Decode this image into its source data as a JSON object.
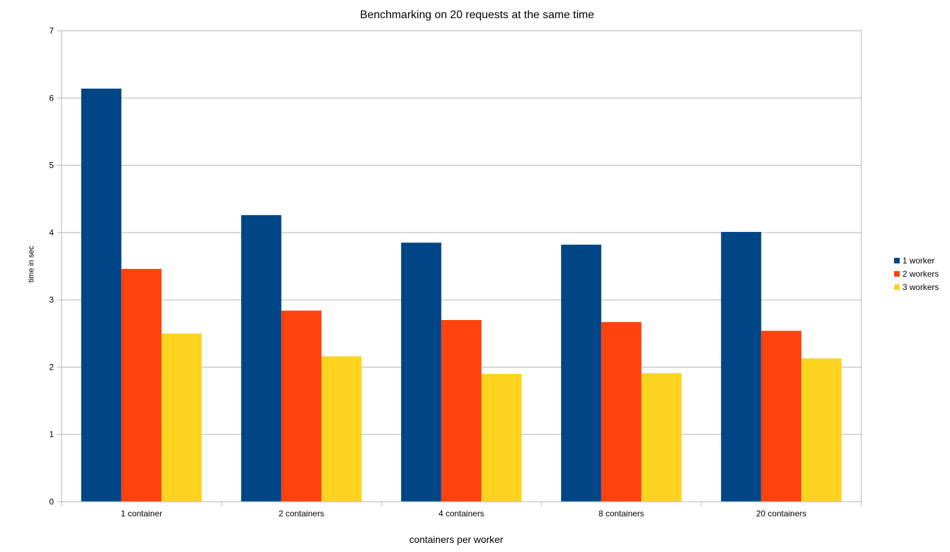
{
  "chart_data": {
    "type": "bar",
    "title": "Benchmarking on 20 requests at the same time",
    "xlabel": "containers per worker",
    "ylabel": "time in sec",
    "categories": [
      "1 container",
      "2 containers",
      "4 containers",
      "8 containers",
      "20 containers"
    ],
    "series": [
      {
        "name": "1 worker",
        "color": "#004586",
        "values": [
          6.14,
          4.26,
          3.85,
          3.82,
          4.01
        ]
      },
      {
        "name": "2 workers",
        "color": "#ff420e",
        "values": [
          3.46,
          2.84,
          2.7,
          2.67,
          2.54
        ]
      },
      {
        "name": "3 workers",
        "color": "#ffd320",
        "values": [
          2.5,
          2.16,
          1.9,
          1.91,
          2.13
        ]
      }
    ],
    "ylim": [
      0,
      7
    ],
    "yticks": [
      "0",
      "1",
      "2",
      "3",
      "4",
      "5",
      "6",
      "7"
    ],
    "grid": true,
    "legend_position": "right"
  }
}
